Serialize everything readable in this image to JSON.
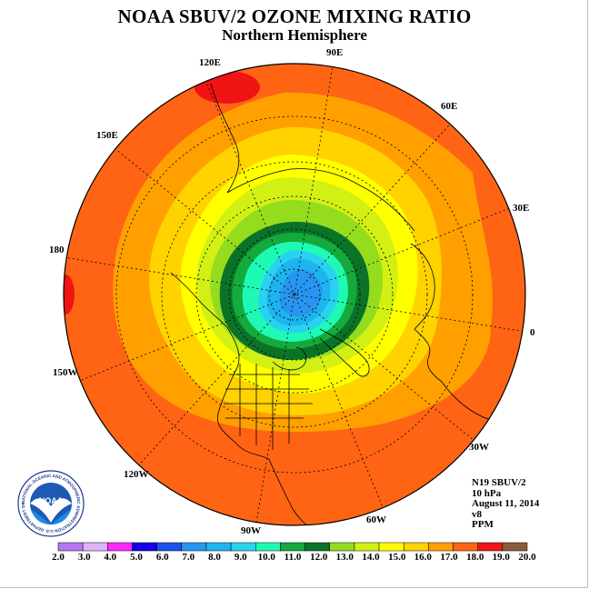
{
  "header": {
    "title": "NOAA SBUV/2 OZONE MIXING RATIO",
    "subtitle": "Northern Hemisphere"
  },
  "longitude_labels": {
    "lon_90e": "90E",
    "lon_60e": "60E",
    "lon_30e": "30E",
    "lon_0": "0",
    "lon_30w": "30W",
    "lon_60w": "60W",
    "lon_90w": "90W",
    "lon_120w": "120W",
    "lon_150w": "150W",
    "lon_180": "180",
    "lon_150e": "150E",
    "lon_120e": "120E"
  },
  "info": {
    "instrument": "N19 SBUV/2",
    "level": "10 hPa",
    "date": "August 11, 2014",
    "version": "v8",
    "units": "PPM"
  },
  "logo": {
    "text": "NOAA",
    "ring_text": "NATIONAL OCEANIC AND ATMOSPHERIC ADMINISTRATION U.S. DEPARTMENT OF COMMERCE"
  },
  "colorbar": {
    "labels": [
      "2.0",
      "3.0",
      "4.0",
      "5.0",
      "6.0",
      "7.0",
      "8.0",
      "9.0",
      "10.0",
      "11.0",
      "12.0",
      "13.0",
      "14.0",
      "15.0",
      "16.0",
      "17.0",
      "18.0",
      "19.0",
      "20.0"
    ],
    "colors": [
      "#b678f0",
      "#dcb4f8",
      "#ff28ff",
      "#1400e6",
      "#1e50f0",
      "#2896f0",
      "#1eb4f0",
      "#28d2f0",
      "#1efab4",
      "#14aa3c",
      "#0a7328",
      "#96dc1e",
      "#d2f014",
      "#ffff00",
      "#ffd200",
      "#ffa000",
      "#ff6414",
      "#f01414",
      "#8c5a3c"
    ]
  },
  "map_colors": {
    "outer": "#ff6414",
    "band_orange": "#ffa000",
    "band_gold": "#ffd200",
    "band_yellow": "#ffff00",
    "band_lime": "#d2f014",
    "band_green": "#96dc1e",
    "ring_dark": "#0a7328",
    "ring_mid": "#14aa3c",
    "core_cyan": "#1efab4",
    "core_blue1": "#28d2f0",
    "core_blue2": "#1eb4f0",
    "core_blue3": "#2896f0",
    "hot_spot": "#f01414"
  }
}
